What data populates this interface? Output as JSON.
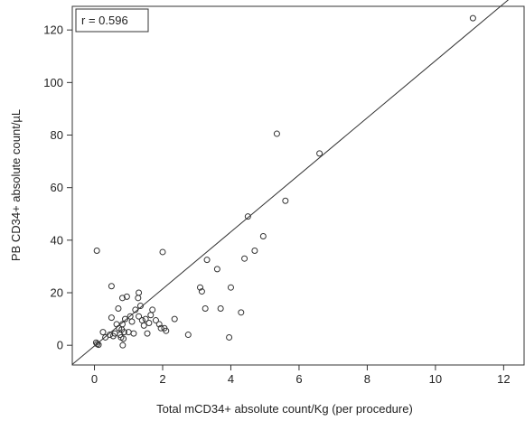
{
  "chart_data": {
    "type": "scatter",
    "title": "",
    "xlabel": "Total mCD34+ absolute count/Kg (per procedure)",
    "ylabel": "PB CD34+ absolute count/µL",
    "xlim": [
      -0.65,
      12.6
    ],
    "ylim": [
      -7.5,
      129
    ],
    "x_ticks": [
      0,
      2,
      4,
      6,
      8,
      10,
      12
    ],
    "y_ticks": [
      0,
      20,
      40,
      60,
      80,
      100,
      120
    ],
    "x_tick_labels": [
      "0",
      "2",
      "4",
      "6",
      "8",
      "10",
      "12"
    ],
    "y_tick_labels": [
      "0",
      "20",
      "40",
      "60",
      "80",
      "100",
      "120"
    ],
    "grid": false,
    "marker": "open-circle",
    "annotation": "r = 0.596",
    "fit_line": {
      "x": [
        -0.65,
        12.6
      ],
      "y": [
        -7.3,
        136.5
      ]
    },
    "points": [
      {
        "x": 0.07,
        "y": 36.0
      },
      {
        "x": 0.05,
        "y": 1.0
      },
      {
        "x": 0.08,
        "y": 0.5
      },
      {
        "x": 0.12,
        "y": 0.2
      },
      {
        "x": 0.25,
        "y": 5.0
      },
      {
        "x": 0.32,
        "y": 3.0
      },
      {
        "x": 0.45,
        "y": 4.0
      },
      {
        "x": 0.5,
        "y": 22.5
      },
      {
        "x": 0.5,
        "y": 10.5
      },
      {
        "x": 0.55,
        "y": 3.5
      },
      {
        "x": 0.6,
        "y": 4.5
      },
      {
        "x": 0.65,
        "y": 8.0
      },
      {
        "x": 0.7,
        "y": 14.0
      },
      {
        "x": 0.72,
        "y": 6.5
      },
      {
        "x": 0.75,
        "y": 4.0
      },
      {
        "x": 0.78,
        "y": 3.0
      },
      {
        "x": 0.8,
        "y": 6.0
      },
      {
        "x": 0.82,
        "y": 18.0
      },
      {
        "x": 0.82,
        "y": 8.0
      },
      {
        "x": 0.83,
        "y": 0.0
      },
      {
        "x": 0.85,
        "y": 2.5
      },
      {
        "x": 0.87,
        "y": 5.0
      },
      {
        "x": 0.9,
        "y": 10.0
      },
      {
        "x": 0.95,
        "y": 18.5
      },
      {
        "x": 1.0,
        "y": 5.0
      },
      {
        "x": 1.05,
        "y": 11.0
      },
      {
        "x": 1.1,
        "y": 9.0
      },
      {
        "x": 1.15,
        "y": 4.5
      },
      {
        "x": 1.2,
        "y": 13.5
      },
      {
        "x": 1.28,
        "y": 18.0
      },
      {
        "x": 1.3,
        "y": 20.0
      },
      {
        "x": 1.3,
        "y": 11.0
      },
      {
        "x": 1.35,
        "y": 15.0
      },
      {
        "x": 1.4,
        "y": 9.5
      },
      {
        "x": 1.45,
        "y": 7.5
      },
      {
        "x": 1.5,
        "y": 10.0
      },
      {
        "x": 1.55,
        "y": 4.5
      },
      {
        "x": 1.6,
        "y": 8.5
      },
      {
        "x": 1.65,
        "y": 11.5
      },
      {
        "x": 1.7,
        "y": 13.5
      },
      {
        "x": 1.8,
        "y": 9.5
      },
      {
        "x": 1.9,
        "y": 8.0
      },
      {
        "x": 1.95,
        "y": 6.5
      },
      {
        "x": 2.0,
        "y": 35.5
      },
      {
        "x": 2.05,
        "y": 6.5
      },
      {
        "x": 2.1,
        "y": 5.5
      },
      {
        "x": 2.35,
        "y": 10.0
      },
      {
        "x": 2.75,
        "y": 4.0
      },
      {
        "x": 3.1,
        "y": 22.0
      },
      {
        "x": 3.15,
        "y": 20.5
      },
      {
        "x": 3.25,
        "y": 14.0
      },
      {
        "x": 3.3,
        "y": 32.5
      },
      {
        "x": 3.6,
        "y": 29.0
      },
      {
        "x": 3.7,
        "y": 14.0
      },
      {
        "x": 3.95,
        "y": 3.0
      },
      {
        "x": 4.0,
        "y": 22.0
      },
      {
        "x": 4.3,
        "y": 12.5
      },
      {
        "x": 4.4,
        "y": 33.0
      },
      {
        "x": 4.5,
        "y": 49.0
      },
      {
        "x": 4.7,
        "y": 36.0
      },
      {
        "x": 4.95,
        "y": 41.5
      },
      {
        "x": 5.35,
        "y": 80.5
      },
      {
        "x": 5.6,
        "y": 55.0
      },
      {
        "x": 6.6,
        "y": 73.0
      },
      {
        "x": 11.1,
        "y": 124.5
      }
    ]
  }
}
